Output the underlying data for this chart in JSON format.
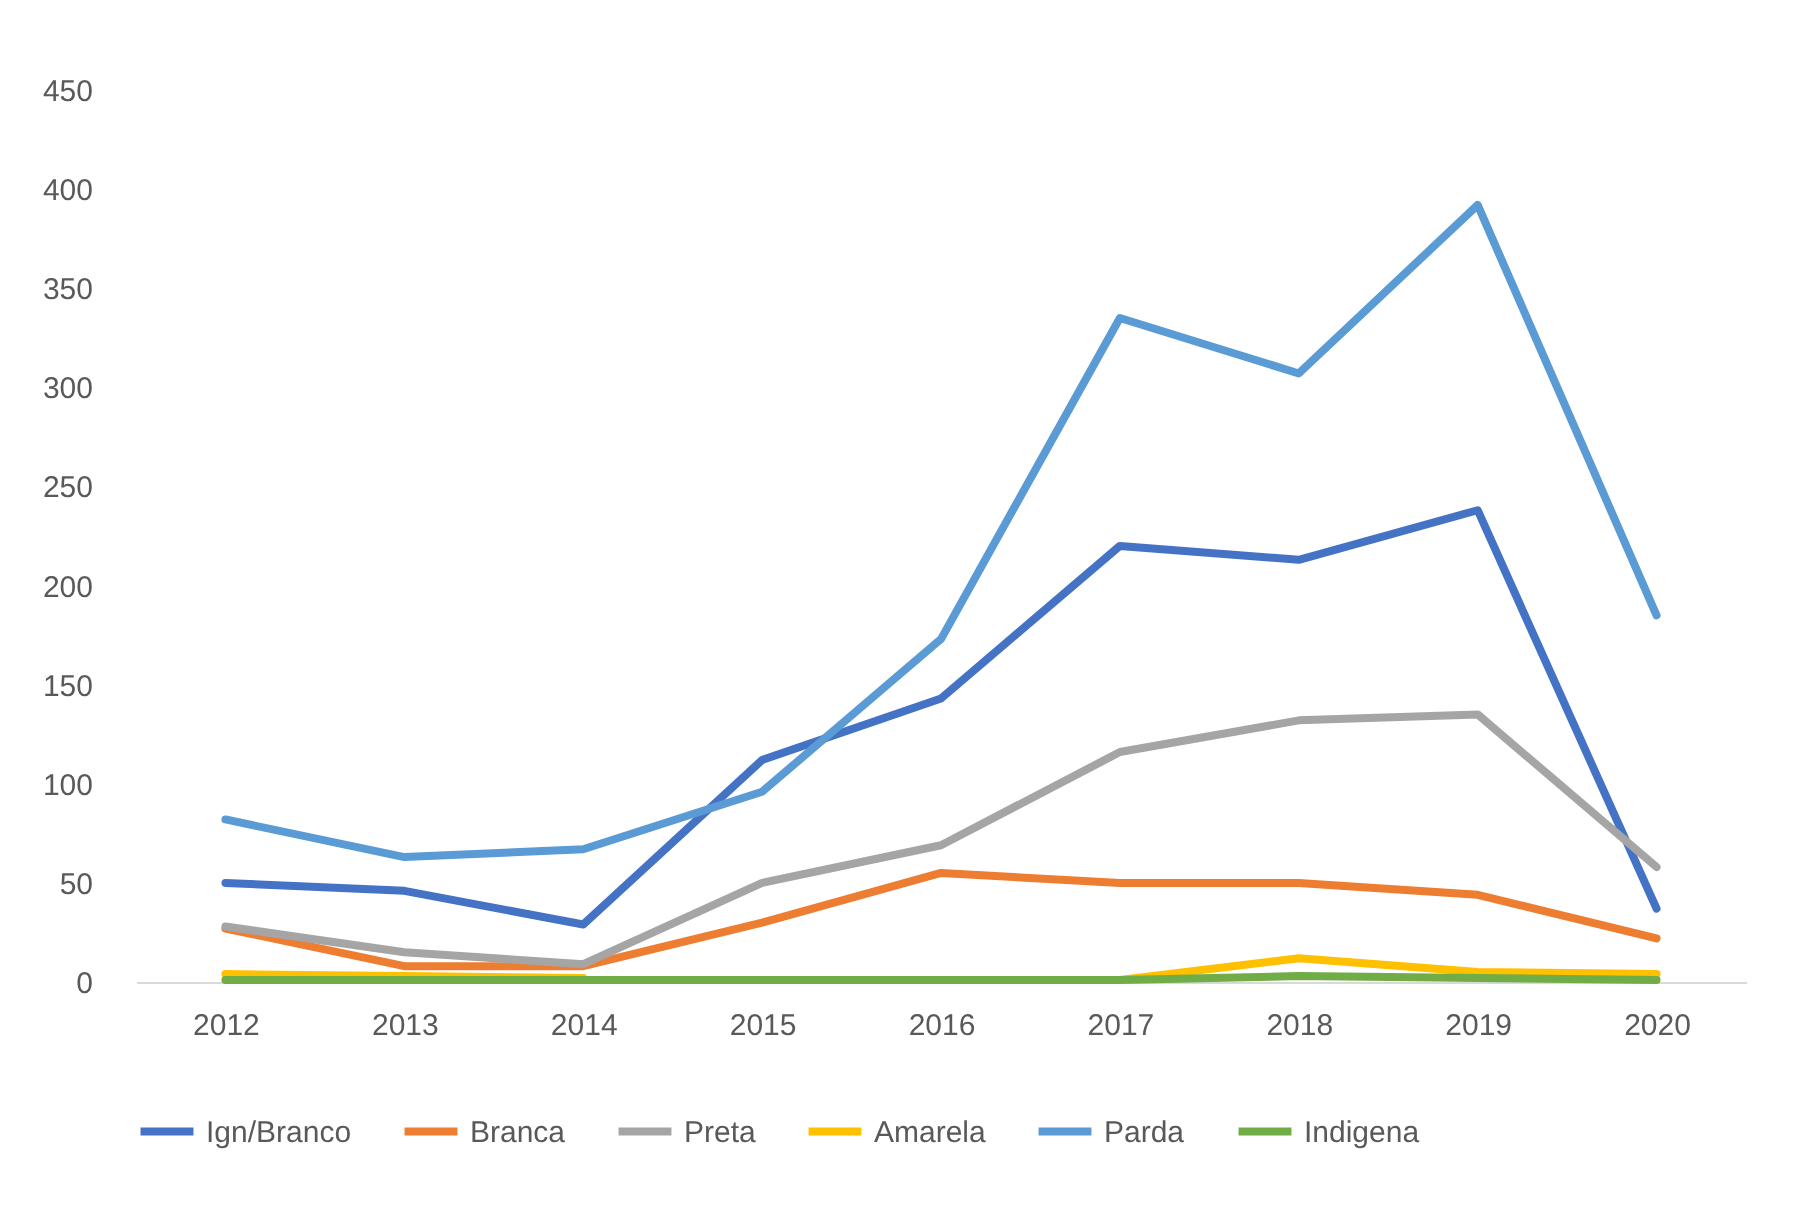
{
  "chart_data": {
    "type": "line",
    "categories": [
      "2012",
      "2013",
      "2014",
      "2015",
      "2016",
      "2017",
      "2018",
      "2019",
      "2020"
    ],
    "series": [
      {
        "name": "Ign/Branco",
        "color": "#4472c4",
        "values": [
          50,
          46,
          29,
          112,
          143,
          220,
          213,
          238,
          37
        ]
      },
      {
        "name": "Branca",
        "color": "#ed7d31",
        "values": [
          27,
          8,
          8,
          30,
          55,
          50,
          50,
          44,
          22
        ]
      },
      {
        "name": "Preta",
        "color": "#a5a5a5",
        "values": [
          28,
          15,
          9,
          50,
          69,
          116,
          132,
          135,
          58
        ]
      },
      {
        "name": "Amarela",
        "color": "#ffc000",
        "values": [
          4,
          3,
          2,
          null,
          null,
          1,
          12,
          5,
          4
        ]
      },
      {
        "name": "Parda",
        "color": "#5b9bd5",
        "values": [
          82,
          63,
          67,
          96,
          173,
          335,
          307,
          392,
          185
        ]
      },
      {
        "name": "Indigena",
        "color": "#70ad47",
        "values": [
          1,
          1,
          1,
          1,
          1,
          1,
          3,
          2,
          1
        ]
      }
    ],
    "ylim": [
      0,
      450
    ],
    "yticks": [
      0,
      50,
      100,
      150,
      200,
      250,
      300,
      350,
      400,
      450
    ],
    "grid": false,
    "legend": "bottom",
    "marker": "none",
    "line_style": "solid"
  }
}
